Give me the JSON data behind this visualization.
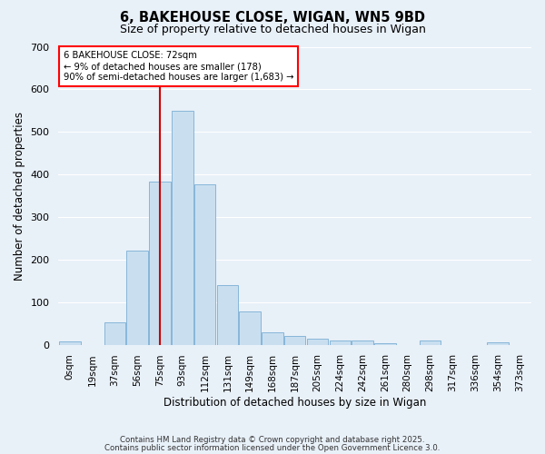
{
  "title": "6, BAKEHOUSE CLOSE, WIGAN, WN5 9BD",
  "subtitle": "Size of property relative to detached houses in Wigan",
  "xlabel": "Distribution of detached houses by size in Wigan",
  "ylabel": "Number of detached properties",
  "bar_color": "#c9dff0",
  "bar_edge_color": "#7aaed4",
  "bg_color": "#e8f0f8",
  "fig_bg_color": "#e8f0f8",
  "grid_color": "#ffffff",
  "vline_color": "#cc0000",
  "vline_x_index": 4,
  "annotation_text": "6 BAKEHOUSE CLOSE: 72sqm\n← 9% of detached houses are smaller (178)\n90% of semi-detached houses are larger (1,683) →",
  "categories": [
    "0sqm",
    "19sqm",
    "37sqm",
    "56sqm",
    "75sqm",
    "93sqm",
    "112sqm",
    "131sqm",
    "149sqm",
    "168sqm",
    "187sqm",
    "205sqm",
    "224sqm",
    "242sqm",
    "261sqm",
    "280sqm",
    "298sqm",
    "317sqm",
    "336sqm",
    "354sqm",
    "373sqm"
  ],
  "values": [
    7,
    0,
    52,
    220,
    383,
    550,
    377,
    140,
    78,
    30,
    20,
    15,
    9,
    10,
    4,
    0,
    9,
    0,
    0,
    5,
    0
  ],
  "ylim": [
    0,
    700
  ],
  "yticks": [
    0,
    100,
    200,
    300,
    400,
    500,
    600,
    700
  ],
  "footnote1": "Contains HM Land Registry data © Crown copyright and database right 2025.",
  "footnote2": "Contains public sector information licensed under the Open Government Licence 3.0."
}
